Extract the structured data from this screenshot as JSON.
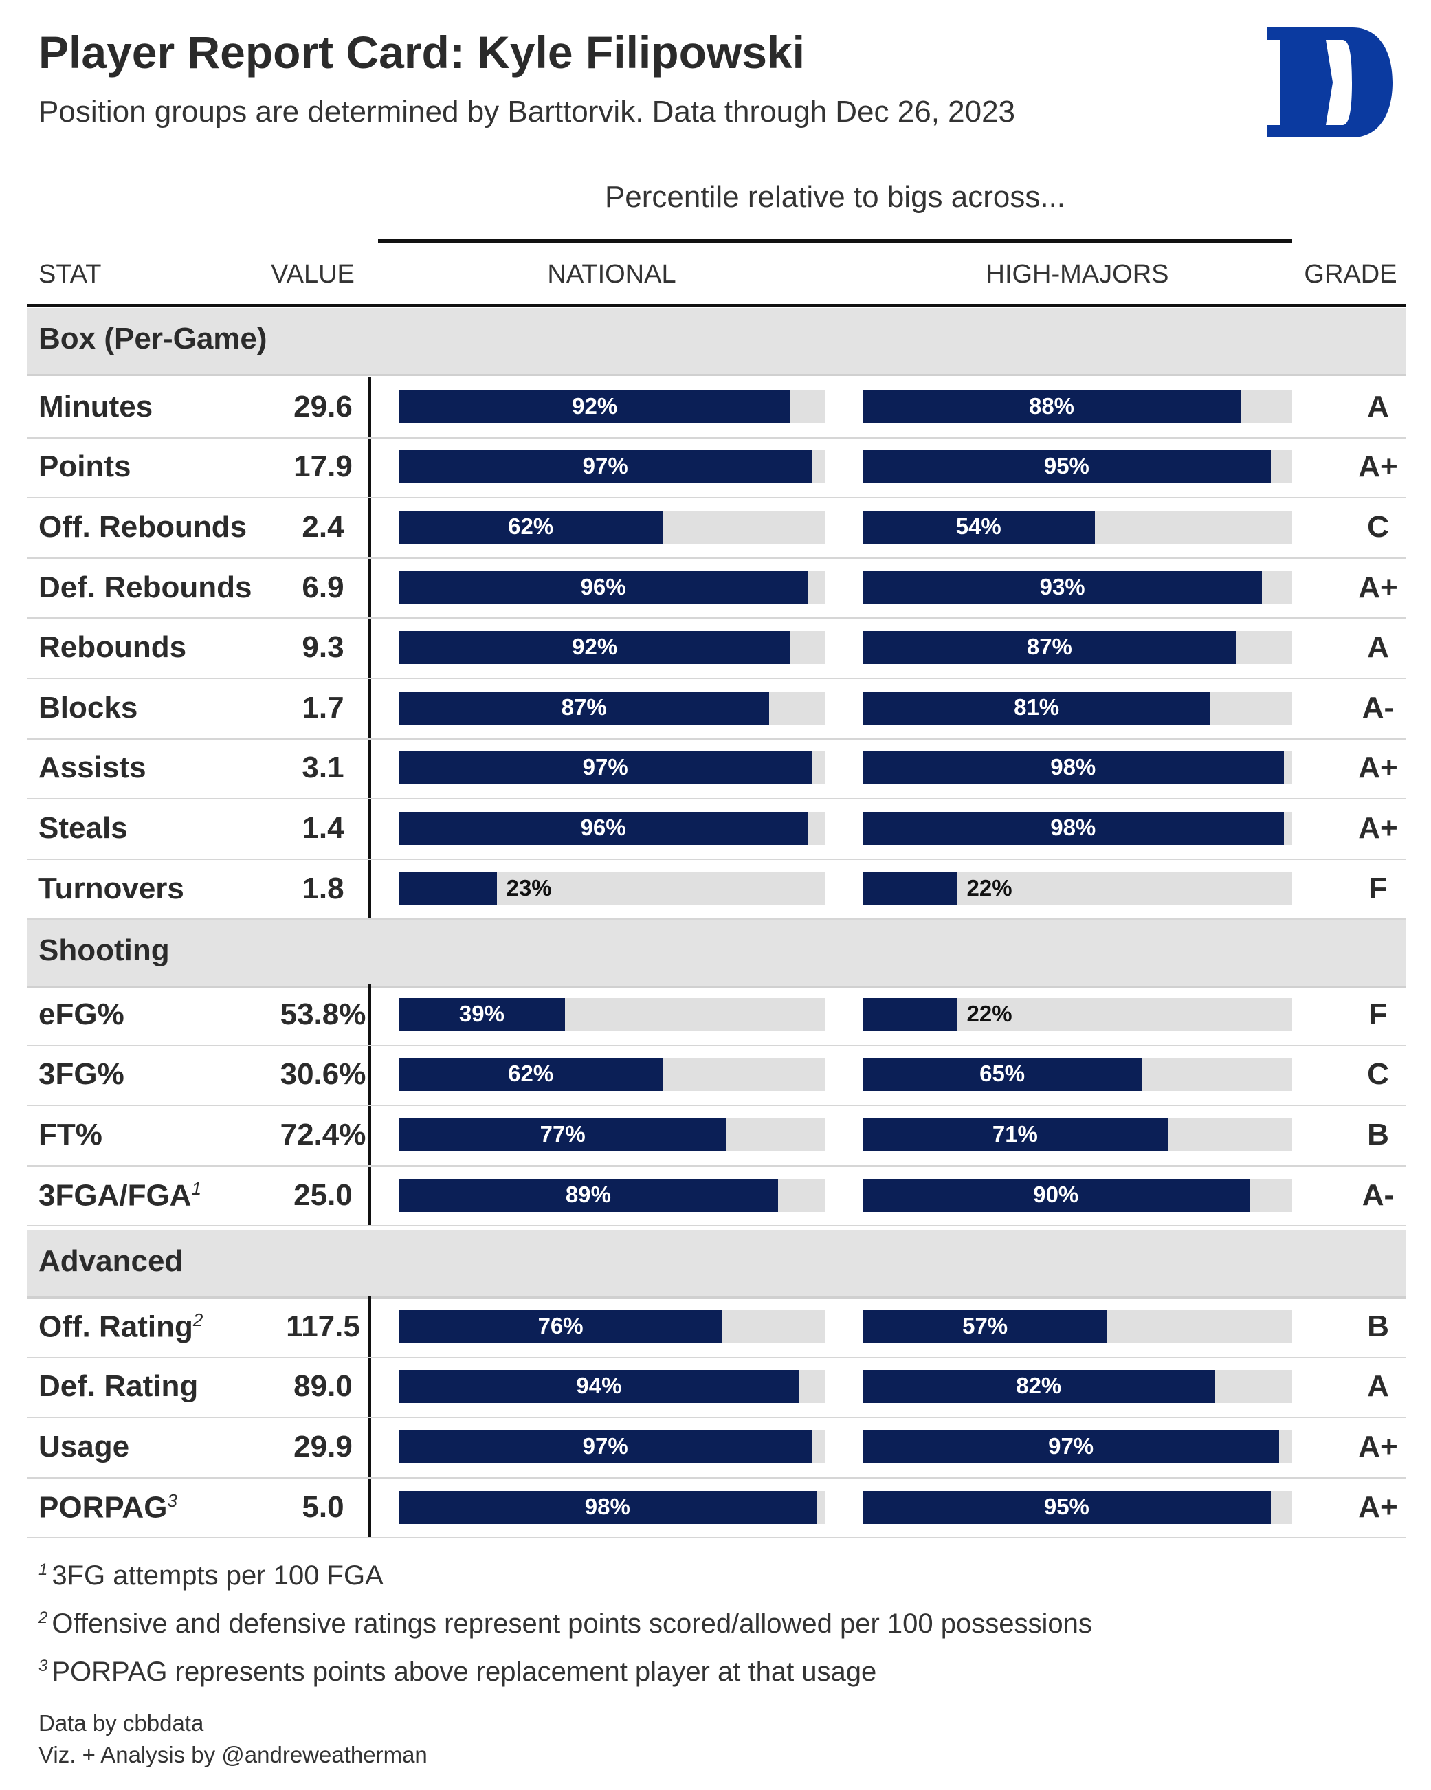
{
  "header": {
    "title": "Player Report Card: Kyle Filipowski",
    "subtitle": "Position groups are determined by Barttorvik. Data through Dec 26, 2023",
    "logo_color": "#0b3aa0"
  },
  "table": {
    "spanner": "Percentile relative to bigs across...",
    "columns": [
      "STAT",
      "VALUE",
      "NATIONAL",
      "HIGH-MAJORS",
      "GRADE"
    ]
  },
  "colors": {
    "bar": "#0b1f56",
    "track": "#e0e0e0",
    "group_bg": "#e3e3e3"
  },
  "chart_data": {
    "type": "bar",
    "title": "Player Report Card: Kyle Filipowski",
    "series_names": [
      "NATIONAL",
      "HIGH-MAJORS"
    ],
    "groups": [
      {
        "name": "Box (Per-Game)",
        "rows": [
          {
            "stat": "Minutes",
            "value": "29.6",
            "national": 92,
            "high_majors": 88,
            "grade": "A"
          },
          {
            "stat": "Points",
            "value": "17.9",
            "national": 97,
            "high_majors": 95,
            "grade": "A+"
          },
          {
            "stat": "Off. Rebounds",
            "value": "2.4",
            "national": 62,
            "high_majors": 54,
            "grade": "C"
          },
          {
            "stat": "Def. Rebounds",
            "value": "6.9",
            "national": 96,
            "high_majors": 93,
            "grade": "A+"
          },
          {
            "stat": "Rebounds",
            "value": "9.3",
            "national": 92,
            "high_majors": 87,
            "grade": "A"
          },
          {
            "stat": "Blocks",
            "value": "1.7",
            "national": 87,
            "high_majors": 81,
            "grade": "A-"
          },
          {
            "stat": "Assists",
            "value": "3.1",
            "national": 97,
            "high_majors": 98,
            "grade": "A+"
          },
          {
            "stat": "Steals",
            "value": "1.4",
            "national": 96,
            "high_majors": 98,
            "grade": "A+"
          },
          {
            "stat": "Turnovers",
            "value": "1.8",
            "national": 23,
            "high_majors": 22,
            "grade": "F"
          }
        ]
      },
      {
        "name": "Shooting",
        "rows": [
          {
            "stat": "eFG%",
            "value": "53.8%",
            "national": 39,
            "high_majors": 22,
            "grade": "F"
          },
          {
            "stat": "3FG%",
            "value": "30.6%",
            "national": 62,
            "high_majors": 65,
            "grade": "C"
          },
          {
            "stat": "FT%",
            "value": "72.4%",
            "national": 77,
            "high_majors": 71,
            "grade": "B"
          },
          {
            "stat": "3FGA/FGA",
            "sup": "1",
            "value": "25.0",
            "national": 89,
            "high_majors": 90,
            "grade": "A-"
          }
        ]
      },
      {
        "name": "Advanced",
        "rows": [
          {
            "stat": "Off. Rating",
            "sup": "2",
            "value": "117.5",
            "national": 76,
            "high_majors": 57,
            "grade": "B"
          },
          {
            "stat": "Def. Rating",
            "value": "89.0",
            "national": 94,
            "high_majors": 82,
            "grade": "A"
          },
          {
            "stat": "Usage",
            "value": "29.9",
            "national": 97,
            "high_majors": 97,
            "grade": "A+"
          },
          {
            "stat": "PORPAG",
            "sup": "3",
            "value": "5.0",
            "national": 98,
            "high_majors": 95,
            "grade": "A+"
          }
        ]
      }
    ],
    "ylim": [
      0,
      100
    ]
  },
  "footnotes": [
    {
      "mark": "1",
      "text": "3FG attempts per 100 FGA"
    },
    {
      "mark": "2",
      "text": "Offensive and defensive ratings represent points scored/allowed per 100 possessions"
    },
    {
      "mark": "3",
      "text": "PORPAG represents points above replacement player at that usage"
    }
  ],
  "credits": [
    "Data by cbbdata",
    "Viz. + Analysis by @andreweatherman"
  ]
}
